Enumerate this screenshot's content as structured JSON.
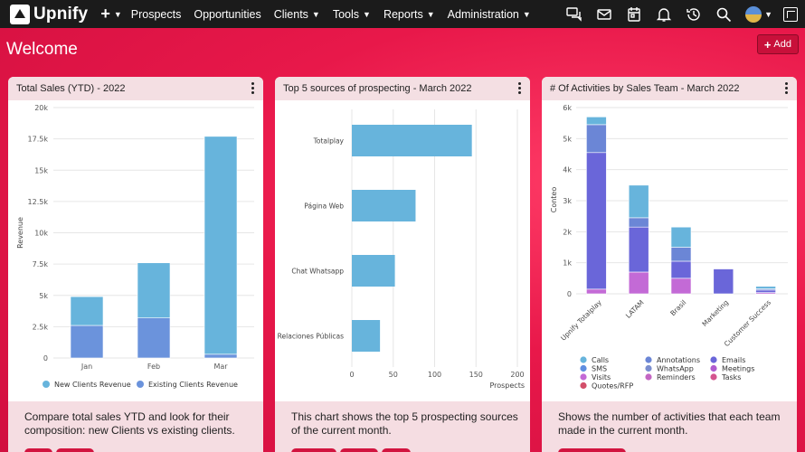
{
  "app": {
    "name": "Upnify"
  },
  "nav": {
    "plus_label": "+",
    "items": [
      {
        "label": "Prospects",
        "has_menu": false
      },
      {
        "label": "Opportunities",
        "has_menu": false
      },
      {
        "label": "Clients",
        "has_menu": true
      },
      {
        "label": "Tools",
        "has_menu": true
      },
      {
        "label": "Reports",
        "has_menu": true
      },
      {
        "label": "Administration",
        "has_menu": true
      }
    ],
    "icons": [
      "chat-icon",
      "mail-icon",
      "calendar-icon",
      "bell-icon",
      "history-icon",
      "search-icon",
      "avatar",
      "exit-icon"
    ]
  },
  "page": {
    "title": "Welcome",
    "add_label": "Add"
  },
  "cards": [
    {
      "title": "Total Sales (YTD) - 2022",
      "description": "Compare total sales YTD and look for their composition: new Clients vs existing clients."
    },
    {
      "title": "Top 5 sources of prospecting - March 2022",
      "description": "This chart shows the top 5 prospecting sources of the current month."
    },
    {
      "title": "# Of Activities by Sales Team - March 2022",
      "description": "Shows the number of activities that each team made in the current month."
    }
  ],
  "chart_data": [
    {
      "type": "bar",
      "stacked": true,
      "ylabel": "Revenue",
      "ylim": [
        0,
        20000
      ],
      "yticks": [
        "0",
        "2.5k",
        "5k",
        "7.5k",
        "10k",
        "12.5k",
        "15k",
        "17.5k",
        "20k"
      ],
      "categories": [
        "Jan",
        "Feb",
        "Mar"
      ],
      "legend_position": "bottom",
      "series": [
        {
          "name": "Existing Clients Revenue",
          "color": "#6b93dc",
          "values": [
            2600,
            3200,
            300
          ]
        },
        {
          "name": "New Clients Revenue",
          "color": "#67b4dc",
          "values": [
            2300,
            4400,
            17400
          ]
        }
      ]
    },
    {
      "type": "bar",
      "orientation": "horizontal",
      "xlabel": "Prospects",
      "xlim": [
        0,
        200
      ],
      "xticks": [
        "0",
        "50",
        "100",
        "150",
        "200"
      ],
      "categories": [
        "Totalplay",
        "Página Web",
        "Chat Whatsapp",
        "Relaciones Públicas"
      ],
      "series": [
        {
          "color": "#67b4dc",
          "values": [
            145,
            77,
            52,
            34
          ]
        }
      ]
    },
    {
      "type": "bar",
      "stacked": true,
      "ylabel": "Conteo",
      "ylim": [
        0,
        6000
      ],
      "yticks": [
        "0",
        "1k",
        "2k",
        "3k",
        "4k",
        "5k",
        "6k"
      ],
      "categories": [
        "Upnify Totalplay",
        "LATAM",
        "Brasil",
        "Marketing",
        "Customer Success"
      ],
      "legend_position": "bottom",
      "series": [
        {
          "name": "Visits",
          "color": "#c36ad6",
          "values": [
            150,
            700,
            500,
            0,
            40
          ]
        },
        {
          "name": "Emails",
          "color": "#6a66d9",
          "values": [
            4400,
            1450,
            550,
            800,
            80
          ]
        },
        {
          "name": "Annotations",
          "color": "#6b86d6",
          "values": [
            900,
            300,
            450,
            0,
            40
          ]
        },
        {
          "name": "Calls",
          "color": "#67b4dc",
          "values": [
            250,
            1050,
            650,
            0,
            80
          ]
        },
        {
          "name": "SMS",
          "color": "#5f8ee0",
          "values": [
            0,
            0,
            0,
            0,
            0
          ]
        },
        {
          "name": "WhatsApp",
          "color": "#7b8ecf",
          "values": [
            0,
            0,
            0,
            0,
            0
          ]
        },
        {
          "name": "Meetings",
          "color": "#b05ccf",
          "values": [
            0,
            0,
            0,
            0,
            0
          ]
        },
        {
          "name": "Reminders",
          "color": "#c466c3",
          "values": [
            0,
            0,
            0,
            0,
            0
          ]
        },
        {
          "name": "Tasks",
          "color": "#d4558f",
          "values": [
            0,
            0,
            0,
            0,
            0
          ]
        },
        {
          "name": "Quotes/RFP",
          "color": "#d34f6a",
          "values": [
            0,
            0,
            0,
            0,
            0
          ]
        }
      ],
      "legend_order": [
        "Calls",
        "Annotations",
        "Emails",
        "SMS",
        "WhatsApp",
        "Meetings",
        "Visits",
        "Reminders",
        "Tasks",
        "Quotes/RFP"
      ]
    }
  ]
}
